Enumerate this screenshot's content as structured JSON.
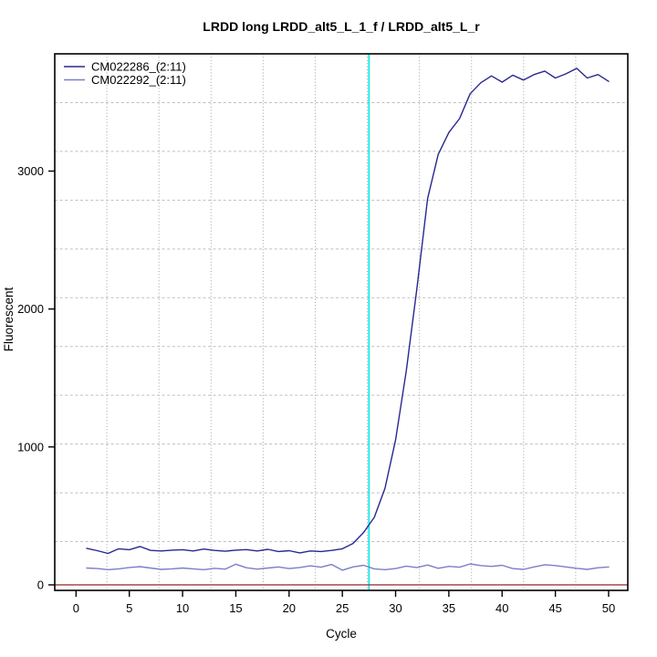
{
  "window": {
    "background": "#ffffff"
  },
  "chart_data": {
    "type": "line",
    "title": "LRDD long LRDD_alt5_L_1_f / LRDD_alt5_L_r",
    "xlabel": "Cycle",
    "ylabel": "Fluorescent",
    "xlim": [
      -2,
      51.8
    ],
    "ylim": [
      -40,
      3850
    ],
    "x_ticks": [
      0,
      5,
      10,
      15,
      20,
      25,
      30,
      35,
      40,
      45,
      50
    ],
    "y_ticks": [
      0,
      1000,
      2000,
      3000
    ],
    "grid": {
      "on": true,
      "nx": 11,
      "ny": 11,
      "v_color": "#a0a0a0",
      "h_color": "#bfbfbf"
    },
    "legend": {
      "position": "top-left"
    },
    "x": [
      1,
      2,
      3,
      4,
      5,
      6,
      7,
      8,
      9,
      10,
      11,
      12,
      13,
      14,
      15,
      16,
      17,
      18,
      19,
      20,
      21,
      22,
      23,
      24,
      25,
      26,
      27,
      28,
      29,
      30,
      31,
      32,
      33,
      34,
      35,
      36,
      37,
      38,
      39,
      40,
      41,
      42,
      43,
      44,
      45,
      46,
      47,
      48,
      49,
      50
    ],
    "series": [
      {
        "name": "CM022286_(2:11)",
        "color": "#28288f",
        "values": [
          265,
          248,
          228,
          262,
          255,
          278,
          250,
          246,
          252,
          255,
          246,
          260,
          250,
          244,
          252,
          256,
          246,
          258,
          242,
          248,
          232,
          246,
          242,
          250,
          262,
          300,
          380,
          490,
          700,
          1050,
          1550,
          2150,
          2800,
          3120,
          3280,
          3380,
          3560,
          3640,
          3690,
          3645,
          3695,
          3660,
          3700,
          3725,
          3675,
          3705,
          3745,
          3675,
          3700,
          3650
        ]
      },
      {
        "name": "CM022292_(2:11)",
        "color": "#7d7dc8",
        "values": [
          122,
          118,
          110,
          116,
          126,
          132,
          122,
          112,
          116,
          122,
          116,
          110,
          120,
          114,
          150,
          124,
          114,
          122,
          130,
          118,
          126,
          138,
          128,
          148,
          106,
          130,
          142,
          116,
          110,
          118,
          136,
          126,
          144,
          120,
          134,
          128,
          152,
          140,
          134,
          142,
          118,
          112,
          130,
          146,
          140,
          130,
          120,
          112,
          124,
          130
        ]
      }
    ],
    "threshold_vline": {
      "x": 27.5,
      "color": "#00e6e6"
    },
    "baseline_hline": {
      "y": 0,
      "color": "#9e3a3a"
    },
    "axis_color": "#000000"
  }
}
